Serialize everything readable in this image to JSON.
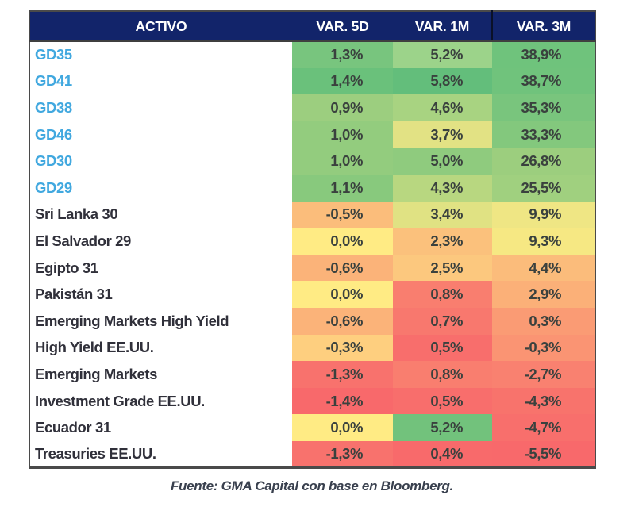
{
  "colors": {
    "header_bg": "#12246A",
    "header_text": "#FFFFFF",
    "ticker_text": "#41A8DF",
    "label_text": "#30303A",
    "value_text": "#3A413E",
    "border": "#4A4A4A",
    "header_divider": "#0A1128",
    "footer_text": "#39404E",
    "scale_min_red": "#F8696B",
    "scale_mid_yellow": "#FFEB84",
    "scale_max_green": "#63BE7B"
  },
  "table": {
    "columns": [
      "ACTIVO",
      "VAR. 5D",
      "VAR. 1M",
      "VAR. 3M"
    ],
    "rows": [
      {
        "name": "GD35",
        "ticker": true,
        "values": [
          "1,3%",
          "5,2%",
          "38,9%"
        ],
        "colors": [
          "#78C57E",
          "#9CD38A",
          "#6FC37C"
        ]
      },
      {
        "name": "GD41",
        "ticker": true,
        "values": [
          "1,4%",
          "5,8%",
          "38,7%"
        ],
        "colors": [
          "#6AC17B",
          "#63BE7B",
          "#70C37C"
        ]
      },
      {
        "name": "GD38",
        "ticker": true,
        "values": [
          "0,9%",
          "4,6%",
          "35,3%"
        ],
        "colors": [
          "#9CCE7F",
          "#A8D381",
          "#79C57D"
        ]
      },
      {
        "name": "GD46",
        "ticker": true,
        "values": [
          "1,0%",
          "3,7%",
          "33,3%"
        ],
        "colors": [
          "#93CC7E",
          "#E2E284",
          "#83C87D"
        ]
      },
      {
        "name": "GD30",
        "ticker": true,
        "values": [
          "1,0%",
          "5,0%",
          "26,8%"
        ],
        "colors": [
          "#93CC7E",
          "#8FCB7E",
          "#9CCE7E"
        ]
      },
      {
        "name": "GD29",
        "ticker": true,
        "values": [
          "1,1%",
          "4,3%",
          "25,5%"
        ],
        "colors": [
          "#88C97D",
          "#B8D780",
          "#A0D07F"
        ]
      },
      {
        "name": "Sri Lanka 30",
        "ticker": false,
        "values": [
          "-0,5%",
          "3,4%",
          "9,9%"
        ],
        "colors": [
          "#FBBD7B",
          "#E0E283",
          "#EFE684"
        ]
      },
      {
        "name": "El Salvador 29",
        "ticker": false,
        "values": [
          "0,0%",
          "2,3%",
          "9,3%"
        ],
        "colors": [
          "#FFEB84",
          "#FBC17C",
          "#F6E883"
        ]
      },
      {
        "name": "Egipto 31",
        "ticker": false,
        "values": [
          "-0,6%",
          "2,5%",
          "4,4%"
        ],
        "colors": [
          "#FBB379",
          "#FCC87E",
          "#FBBC7B"
        ]
      },
      {
        "name": "Pakistán 31",
        "ticker": false,
        "values": [
          "0,0%",
          "0,8%",
          "2,9%"
        ],
        "colors": [
          "#FFEB84",
          "#F97E6F",
          "#FBB078"
        ]
      },
      {
        "name": "Emerging Markets High Yield",
        "ticker": false,
        "values": [
          "-0,6%",
          "0,7%",
          "0,3%"
        ],
        "colors": [
          "#FBB379",
          "#F8786E",
          "#FA9B74"
        ]
      },
      {
        "name": "High Yield EE.UU.",
        "ticker": false,
        "values": [
          "-0,3%",
          "0,5%",
          "-0,3%"
        ],
        "colors": [
          "#FECF7F",
          "#F86E6C",
          "#FA9473"
        ]
      },
      {
        "name": "Emerging Markets",
        "ticker": false,
        "values": [
          "-1,3%",
          "0,8%",
          "-2,7%"
        ],
        "colors": [
          "#F8726D",
          "#F97E6F",
          "#F98170"
        ]
      },
      {
        "name": "Investment Grade EE.UU.",
        "ticker": false,
        "values": [
          "-1,4%",
          "0,5%",
          "-4,3%"
        ],
        "colors": [
          "#F8696B",
          "#F86E6C",
          "#F8736C"
        ]
      },
      {
        "name": "Ecuador 31",
        "ticker": false,
        "values": [
          "0,0%",
          "5,2%",
          "-4,7%"
        ],
        "colors": [
          "#FFEB84",
          "#72C27C",
          "#F86F6C"
        ]
      },
      {
        "name": "Treasuries EE.UU.",
        "ticker": false,
        "values": [
          "-1,3%",
          "0,4%",
          "-5,5%"
        ],
        "colors": [
          "#F8726D",
          "#F86A6B",
          "#F8696B"
        ]
      }
    ]
  },
  "footer": {
    "text": "Fuente: GMA Capital con base en Bloomberg."
  },
  "chart_data": {
    "type": "heatmap",
    "title": "",
    "columns": [
      "VAR. 5D",
      "VAR. 1M",
      "VAR. 3M"
    ],
    "rows": [
      "GD35",
      "GD41",
      "GD38",
      "GD46",
      "GD30",
      "GD29",
      "Sri Lanka 30",
      "El Salvador 29",
      "Egipto 31",
      "Pakistán 31",
      "Emerging Markets High Yield",
      "High Yield EE.UU.",
      "Emerging Markets",
      "Investment Grade EE.UU.",
      "Ecuador 31",
      "Treasuries EE.UU."
    ],
    "values_pct": [
      [
        1.3,
        5.2,
        38.9
      ],
      [
        1.4,
        5.8,
        38.7
      ],
      [
        0.9,
        4.6,
        35.3
      ],
      [
        1.0,
        3.7,
        33.3
      ],
      [
        1.0,
        5.0,
        26.8
      ],
      [
        1.1,
        4.3,
        25.5
      ],
      [
        -0.5,
        3.4,
        9.9
      ],
      [
        0.0,
        2.3,
        9.3
      ],
      [
        -0.6,
        2.5,
        4.4
      ],
      [
        0.0,
        0.8,
        2.9
      ],
      [
        -0.6,
        0.7,
        0.3
      ],
      [
        -0.3,
        0.5,
        -0.3
      ],
      [
        -1.3,
        0.8,
        -2.7
      ],
      [
        -1.4,
        0.5,
        -4.3
      ],
      [
        0.0,
        5.2,
        -4.7
      ],
      [
        -1.3,
        0.4,
        -5.5
      ]
    ],
    "unit": "%",
    "color_scale": {
      "low": "#F8696B",
      "mid": "#FFEB84",
      "high": "#63BE7B",
      "applied": "per-column"
    },
    "source": "Fuente: GMA Capital con base en Bloomberg."
  }
}
